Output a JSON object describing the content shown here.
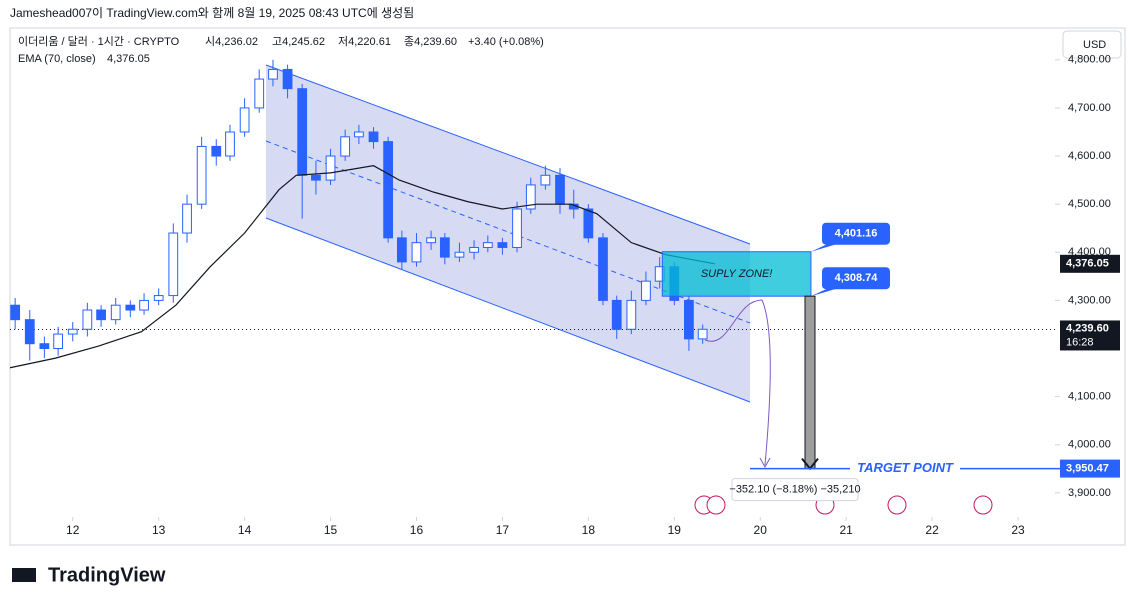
{
  "header": {
    "credit": "Jameshead007이 TradingView.com와 함께 8월 19, 2025 08:43 UTC에 생성됨",
    "symbol": "이더리움 / 달러 · 1시간 · CRYPTO",
    "open": "시4,236.02",
    "high": "고4,245.62",
    "low": "저4,220.61",
    "close": "종4,239.60",
    "change": "+3.40 (+0.08%)",
    "currency": "USD",
    "brand": "TradingView"
  },
  "chart_data": {
    "type": "candlestick",
    "x": [
      11.33,
      11.5,
      11.67,
      11.83,
      12,
      12.17,
      12.33,
      12.5,
      12.67,
      12.83,
      13,
      13.17,
      13.33,
      13.5,
      13.67,
      13.83,
      14,
      14.17,
      14.33,
      14.5,
      14.67,
      14.83,
      15,
      15.17,
      15.33,
      15.5,
      15.67,
      15.83,
      16,
      16.17,
      16.33,
      16.5,
      16.67,
      16.83,
      17,
      17.17,
      17.33,
      17.5,
      17.67,
      17.83,
      18,
      18.17,
      18.33,
      18.5,
      18.67,
      18.83,
      19,
      19.17,
      19.33
    ],
    "open": [
      4290,
      4260,
      4210,
      4200,
      4230,
      4240,
      4280,
      4260,
      4290,
      4280,
      4300,
      4310,
      4440,
      4500,
      4620,
      4600,
      4650,
      4700,
      4760,
      4780,
      4740,
      4560,
      4550,
      4600,
      4640,
      4650,
      4630,
      4430,
      4380,
      4420,
      4430,
      4390,
      4400,
      4410,
      4420,
      4410,
      4490,
      4540,
      4560,
      4500,
      4490,
      4430,
      4300,
      4240,
      4300,
      4340,
      4370,
      4300,
      4220
    ],
    "high": [
      4305,
      4280,
      4225,
      4245,
      4255,
      4295,
      4290,
      4305,
      4300,
      4315,
      4325,
      4460,
      4520,
      4640,
      4635,
      4665,
      4720,
      4780,
      4800,
      4790,
      4750,
      4590,
      4615,
      4655,
      4665,
      4660,
      4640,
      4445,
      4440,
      4445,
      4440,
      4420,
      4425,
      4435,
      4430,
      4505,
      4555,
      4580,
      4575,
      4530,
      4500,
      4440,
      4310,
      4320,
      4360,
      4390,
      4380,
      4310,
      4250
    ],
    "low": [
      4240,
      4175,
      4180,
      4185,
      4215,
      4225,
      4245,
      4250,
      4265,
      4270,
      4290,
      4295,
      4420,
      4490,
      4580,
      4590,
      4640,
      4690,
      4745,
      4720,
      4470,
      4520,
      4540,
      4590,
      4625,
      4615,
      4420,
      4365,
      4370,
      4405,
      4375,
      4380,
      4385,
      4400,
      4395,
      4400,
      4480,
      4530,
      4480,
      4470,
      4420,
      4290,
      4220,
      4230,
      4290,
      4325,
      4290,
      4195,
      4210
    ],
    "close": [
      4260,
      4210,
      4200,
      4230,
      4240,
      4280,
      4260,
      4290,
      4280,
      4300,
      4310,
      4440,
      4500,
      4620,
      4600,
      4650,
      4700,
      4760,
      4780,
      4740,
      4560,
      4550,
      4600,
      4640,
      4650,
      4630,
      4430,
      4380,
      4420,
      4430,
      4390,
      4400,
      4410,
      4420,
      4410,
      4490,
      4540,
      4560,
      4500,
      4490,
      4430,
      4300,
      4240,
      4300,
      4340,
      4370,
      4300,
      4220,
      4240
    ],
    "color": "#2962ff",
    "ema": {
      "name": "EMA (70, close)",
      "color": "#131722",
      "x": [
        11.27,
        11.8,
        12.3,
        12.8,
        13.2,
        13.6,
        14,
        14.4,
        14.6,
        15,
        15.5,
        15.8,
        16.2,
        16.6,
        17,
        17.4,
        17.8,
        18.1,
        18.5,
        18.9,
        19.47
      ],
      "values": [
        4160,
        4180,
        4205,
        4235,
        4290,
        4370,
        4440,
        4530,
        4560,
        4565,
        4580,
        4550,
        4525,
        4505,
        4490,
        4500,
        4500,
        4480,
        4420,
        4395,
        4376.05
      ]
    },
    "ema_tag": {
      "value": 4376.05,
      "label": "4,376.05"
    },
    "price_tag": {
      "value": 4239.6,
      "label": "4,239.60",
      "countdown": "16:28"
    },
    "zone": {
      "name": "SUPLY ZONE!",
      "from": 18.86,
      "to": 20.59,
      "top": {
        "value": 4401.16,
        "label": "4,401.16"
      },
      "bottom": {
        "value": 4308.74,
        "label": "4,308.74"
      }
    },
    "target": {
      "name": "TARGET POINT",
      "value": 3950.47,
      "label": "3,950.47"
    },
    "measure": "−352.10 (−8.18%) −35,210",
    "xlim": [
      11.27,
      23.43
    ],
    "xticks": [
      12,
      13,
      14,
      15,
      16,
      17,
      18,
      19,
      20,
      21,
      22,
      23
    ],
    "ylim": [
      3854,
      4810
    ],
    "yticks": [
      {
        "value": 4800,
        "label": "4,800.00"
      },
      {
        "value": 4700,
        "label": "4,700.00"
      },
      {
        "value": 4600,
        "label": "4,600.00"
      },
      {
        "value": 4500,
        "label": "4,500.00"
      },
      {
        "value": 4400,
        "label": "4,400.00"
      },
      {
        "value": 4300,
        "label": "4,300.00"
      },
      {
        "value": 4100,
        "label": "4,100.00"
      },
      {
        "value": 4000,
        "label": "4,000.00"
      },
      {
        "value": 3900,
        "label": "3,900.00"
      }
    ]
  }
}
